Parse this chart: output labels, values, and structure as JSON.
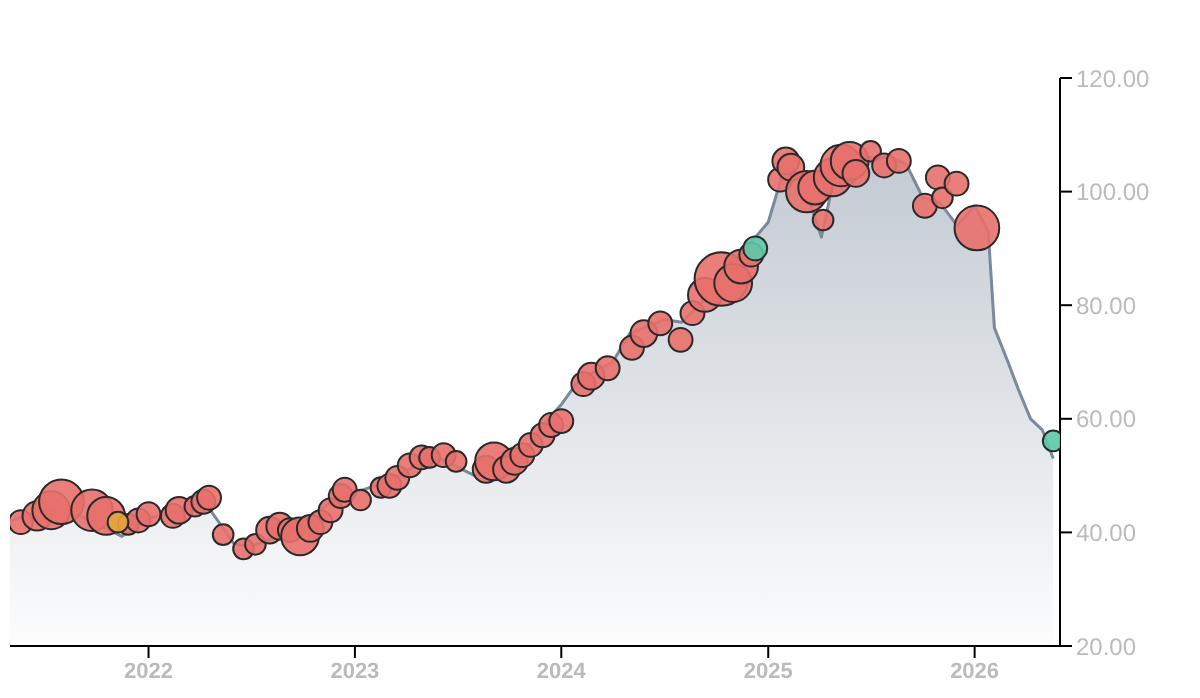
{
  "chart_data": {
    "type": "area",
    "xlim": [
      "2021-05",
      "2026-06"
    ],
    "xticks": [
      "2022",
      "2023",
      "2024",
      "2025",
      "2026"
    ],
    "ylim": [
      20,
      120
    ],
    "yticks": [
      {
        "value": 20,
        "label": "20.00"
      },
      {
        "value": 40,
        "label": "40.00"
      },
      {
        "value": 60,
        "label": "60.00"
      },
      {
        "value": 80,
        "label": "80.00"
      },
      {
        "value": 100,
        "label": "100.00"
      },
      {
        "value": 120,
        "label": "120.00"
      }
    ],
    "grid": false,
    "series": [
      {
        "color": "#7a8a9c",
        "x": [
          "2021-05-01",
          "2021-07-01",
          "2021-09-01",
          "2021-11-15",
          "2022-01-01",
          "2022-03-01",
          "2022-04-10",
          "2022-06-01",
          "2022-07-01",
          "2022-09-01",
          "2022-10-01",
          "2022-12-01",
          "2023-01-01",
          "2023-03-01",
          "2023-05-01",
          "2023-06-01",
          "2023-08-01",
          "2023-09-01",
          "2023-11-01",
          "2023-12-01",
          "2024-01-01",
          "2024-02-01",
          "2024-04-01",
          "2024-05-01",
          "2024-07-01",
          "2024-08-01",
          "2024-09-01",
          "2024-10-01",
          "2024-11-01",
          "2024-12-01",
          "2025-01-01",
          "2025-02-01",
          "2025-03-01",
          "2025-04-05",
          "2025-05-01",
          "2025-06-01",
          "2025-07-01",
          "2025-08-01",
          "2025-09-01",
          "2025-10-01",
          "2025-11-01",
          "2025-12-01",
          "2026-01-01",
          "2026-01-25",
          "2026-02-05",
          "2026-03-01",
          "2026-03-20",
          "2026-04-10",
          "2026-05-01",
          "2026-05-20"
        ],
        "values": [
          42,
          44,
          43,
          39.3,
          42.5,
          44,
          45.4,
          38,
          37.5,
          40,
          42,
          46,
          47,
          49,
          52.5,
          53,
          50,
          51,
          54.6,
          59,
          62.5,
          66.8,
          70,
          75,
          77.5,
          77,
          80,
          84,
          88,
          91,
          94.6,
          105,
          102.5,
          92,
          104,
          105,
          106,
          106,
          105,
          99,
          98,
          94,
          97.5,
          93,
          76,
          70,
          65,
          60,
          58,
          53
        ]
      },
      {
        "type": "bubble",
        "marker": "circle",
        "color": "#e8706b",
        "x": [
          "2021-05-20",
          "2021-06-18",
          "2021-07-13",
          "2021-07-31",
          "2021-09-23",
          "2021-10-18",
          "2021-11-26",
          "2021-12-14",
          "2022-01-01",
          "2022-02-13",
          "2022-02-24",
          "2022-03-24",
          "2022-04-08",
          "2022-04-18",
          "2022-05-13",
          "2022-06-18",
          "2022-07-09",
          "2022-08-03",
          "2022-08-21",
          "2022-09-08",
          "2022-09-26",
          "2022-10-14",
          "2022-11-01",
          "2022-11-19",
          "2022-12-07",
          "2022-12-14",
          "2023-01-11",
          "2023-02-16",
          "2023-03-03",
          "2023-03-17",
          "2023-04-08",
          "2023-04-29",
          "2023-05-13",
          "2023-06-07",
          "2023-06-29",
          "2023-08-21",
          "2023-09-04",
          "2023-09-26",
          "2023-10-10",
          "2023-10-24",
          "2023-11-08",
          "2023-11-29",
          "2023-12-14",
          "2024-01-01",
          "2024-02-09",
          "2024-02-23",
          "2024-03-23",
          "2024-05-05",
          "2024-05-26",
          "2024-06-24",
          "2024-07-30",
          "2024-08-20",
          "2024-09-11",
          "2024-10-10",
          "2024-10-31",
          "2024-11-14",
          "2024-12-02",
          "2025-01-22",
          "2025-02-01",
          "2025-02-10",
          "2025-03-10",
          "2025-03-25",
          "2025-04-08",
          "2025-04-25",
          "2025-05-10",
          "2025-05-25",
          "2025-06-05",
          "2025-07-01",
          "2025-07-25",
          "2025-08-20",
          "2025-10-05",
          "2025-10-28",
          "2025-11-05",
          "2025-11-30",
          "2026-01-05"
        ],
        "values": [
          41.8,
          42.9,
          43.9,
          45.4,
          43.9,
          42.9,
          41.4,
          42.1,
          43.2,
          42.9,
          43.9,
          44.6,
          45.4,
          46.1,
          39.6,
          37.1,
          37.9,
          40.4,
          41.1,
          40.4,
          39.3,
          40.7,
          41.8,
          43.9,
          46.4,
          47.5,
          45.7,
          47.9,
          48.2,
          49.6,
          51.8,
          53.2,
          53.2,
          53.6,
          52.5,
          51.1,
          52.5,
          51.1,
          52.5,
          53.6,
          55.4,
          57.1,
          58.9,
          59.6,
          66.1,
          67.5,
          68.9,
          72.5,
          75,
          76.8,
          73.9,
          78.6,
          81.8,
          84.6,
          83.9,
          86.8,
          88.9,
          102.1,
          105.4,
          104.3,
          100,
          100.7,
          95,
          102.5,
          104.6,
          105.4,
          103.2,
          107.1,
          104.6,
          105.4,
          97.5,
          102.5,
          98.9,
          101.4,
          93.6
        ],
        "sizes": [
          0.2,
          0.3,
          0.5,
          0.7,
          0.6,
          0.5,
          0.15,
          0.2,
          0.2,
          0.2,
          0.25,
          0.15,
          0.2,
          0.2,
          0.15,
          0.15,
          0.15,
          0.25,
          0.25,
          0.2,
          0.5,
          0.25,
          0.2,
          0.2,
          0.2,
          0.2,
          0.15,
          0.15,
          0.2,
          0.2,
          0.2,
          0.2,
          0.15,
          0.2,
          0.15,
          0.25,
          0.5,
          0.25,
          0.25,
          0.2,
          0.2,
          0.2,
          0.2,
          0.2,
          0.2,
          0.25,
          0.2,
          0.2,
          0.25,
          0.2,
          0.2,
          0.2,
          0.4,
          1,
          0.5,
          0.4,
          0.2,
          0.2,
          0.25,
          0.25,
          0.6,
          0.4,
          0.15,
          0.5,
          0.6,
          0.5,
          0.25,
          0.15,
          0.2,
          0.2,
          0.2,
          0.2,
          0.15,
          0.2,
          0.7
        ]
      },
      {
        "type": "bubble",
        "marker": "circle",
        "color": "#5cc9a7",
        "x": [
          "2024-12-09",
          "2026-05-20"
        ],
        "values": [
          90,
          56.1
        ],
        "sizes": [
          0.2,
          0.15
        ]
      },
      {
        "type": "bubble",
        "marker": "circle",
        "color": "#e8a53c",
        "x": [
          "2021-11-08"
        ],
        "values": [
          41.8
        ],
        "sizes": [
          0.15
        ]
      }
    ]
  }
}
